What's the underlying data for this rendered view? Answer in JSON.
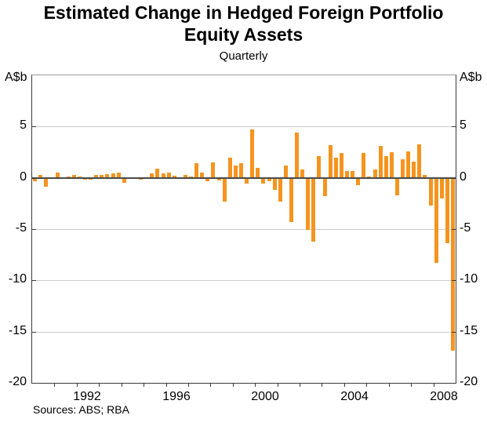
{
  "header": {
    "title": "Estimated Change in Hedged Foreign Portfolio Equity Assets",
    "subtitle": "Quarterly"
  },
  "y_axis": {
    "unit_left": "A$b",
    "unit_right": "A$b"
  },
  "footer": {
    "source_note": "Sources: ABS; RBA"
  },
  "colors": {
    "bar": "#F5941F",
    "grid": "#CCCCCC",
    "zero_line": "#4A4A4A",
    "frame": "#3A3A3A"
  },
  "chart_data": {
    "type": "bar",
    "title": "Estimated Change in Hedged Foreign Portfolio Equity Assets",
    "subtitle": "Quarterly",
    "ylabel": "A$b",
    "ylim": [
      -20,
      10
    ],
    "yticks": [
      5,
      0,
      -5,
      -10,
      -15,
      -20
    ],
    "x_start_year": 1990,
    "x_end_year": 2009,
    "xtick_labels": [
      "1992",
      "1996",
      "2000",
      "2004",
      "2008"
    ],
    "grid": true,
    "categories": [
      "1990 Q1",
      "1990 Q2",
      "1990 Q3",
      "1990 Q4",
      "1991 Q1",
      "1991 Q2",
      "1991 Q3",
      "1991 Q4",
      "1992 Q1",
      "1992 Q2",
      "1992 Q3",
      "1992 Q4",
      "1993 Q1",
      "1993 Q2",
      "1993 Q3",
      "1993 Q4",
      "1994 Q1",
      "1994 Q2",
      "1994 Q3",
      "1994 Q4",
      "1995 Q1",
      "1995 Q2",
      "1995 Q3",
      "1995 Q4",
      "1996 Q1",
      "1996 Q2",
      "1996 Q3",
      "1996 Q4",
      "1997 Q1",
      "1997 Q2",
      "1997 Q3",
      "1997 Q4",
      "1998 Q1",
      "1998 Q2",
      "1998 Q3",
      "1998 Q4",
      "1999 Q1",
      "1999 Q2",
      "1999 Q3",
      "1999 Q4",
      "2000 Q1",
      "2000 Q2",
      "2000 Q3",
      "2000 Q4",
      "2001 Q1",
      "2001 Q2",
      "2001 Q3",
      "2001 Q4",
      "2002 Q1",
      "2002 Q2",
      "2002 Q3",
      "2002 Q4",
      "2003 Q1",
      "2003 Q2",
      "2003 Q3",
      "2003 Q4",
      "2004 Q1",
      "2004 Q2",
      "2004 Q3",
      "2004 Q4",
      "2005 Q1",
      "2005 Q2",
      "2005 Q3",
      "2005 Q4",
      "2006 Q1",
      "2006 Q2",
      "2006 Q3",
      "2006 Q4",
      "2007 Q1",
      "2007 Q2",
      "2007 Q3",
      "2007 Q4",
      "2008 Q1",
      "2008 Q2",
      "2008 Q3",
      "2008 Q4"
    ],
    "values": [
      -0.3,
      0.25,
      -0.9,
      0,
      0.55,
      -0.1,
      0.1,
      0.25,
      0.1,
      -0.2,
      -0.15,
      0.25,
      0.3,
      0.35,
      0.45,
      0.55,
      -0.45,
      0,
      0,
      -0.2,
      0,
      0.4,
      0.9,
      0.4,
      0.5,
      0.2,
      0,
      0.3,
      0.15,
      1.4,
      0.55,
      -0.3,
      1.5,
      -0.25,
      -2.3,
      1.95,
      1.2,
      1.4,
      -0.6,
      4.75,
      1.0,
      -0.6,
      -0.35,
      -1.2,
      -2.3,
      1.2,
      -4.3,
      4.4,
      0.8,
      -5.1,
      -6.2,
      2.1,
      -1.8,
      3.2,
      2.0,
      2.4,
      0.65,
      0.65,
      -0.75,
      2.4,
      0.1,
      0.8,
      3.1,
      2.1,
      2.5,
      -1.7,
      1.8,
      2.6,
      1.6,
      3.3,
      0.25,
      -2.7,
      -8.3,
      -2.0,
      -6.4,
      -16.9
    ]
  }
}
